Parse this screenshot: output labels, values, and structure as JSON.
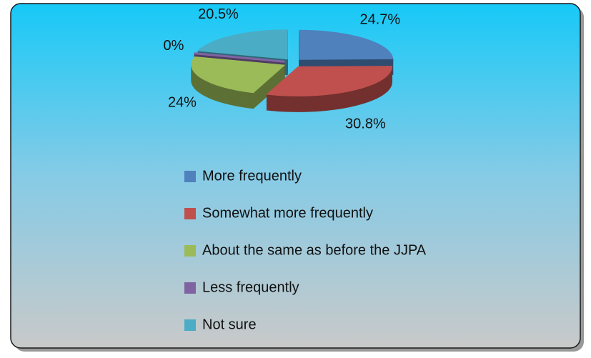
{
  "chart_data": {
    "type": "pie3d",
    "categories": [
      "More frequently",
      "Somewhat more frequently",
      "About the same as before the JJPA",
      "Less frequently",
      "Not sure"
    ],
    "values": [
      24.7,
      30.8,
      24,
      0,
      20.5
    ],
    "value_labels": [
      "24.7%",
      "30.8%",
      "24%",
      "0%",
      "20.5%"
    ],
    "colors": [
      "#4f81bd",
      "#c0504d",
      "#9bbb59",
      "#8064a2",
      "#4bacc6"
    ],
    "legend": "bottom"
  }
}
